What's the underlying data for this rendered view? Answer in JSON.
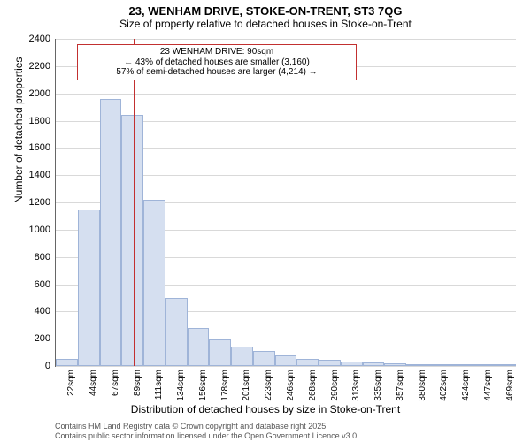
{
  "title": {
    "line1": "23, WENHAM DRIVE, STOKE-ON-TRENT, ST3 7QG",
    "line2": "Size of property relative to detached houses in Stoke-on-Trent",
    "fontsize_main": 13,
    "fontsize_sub": 12,
    "color": "#000000"
  },
  "chart": {
    "type": "histogram",
    "background_color": "#ffffff",
    "grid_color": "#d9d9d9",
    "axis_color": "#666666",
    "ylim": [
      0,
      2400
    ],
    "yticks": [
      0,
      200,
      400,
      600,
      800,
      1000,
      1200,
      1400,
      1600,
      1800,
      2000,
      2200,
      2400
    ],
    "ytick_fontsize": 11,
    "ylabel": "Number of detached properties",
    "xlabel": "Distribution of detached houses by size in Stoke-on-Trent",
    "label_fontsize": 12,
    "xtick_fontsize": 10,
    "bar_fill": "#d5dff0",
    "bar_stroke": "#9fb4d8",
    "bar_width_ratio": 1.0,
    "categories": [
      "22sqm",
      "44sqm",
      "67sqm",
      "89sqm",
      "111sqm",
      "134sqm",
      "156sqm",
      "178sqm",
      "201sqm",
      "223sqm",
      "246sqm",
      "268sqm",
      "290sqm",
      "313sqm",
      "335sqm",
      "357sqm",
      "380sqm",
      "402sqm",
      "424sqm",
      "447sqm",
      "469sqm"
    ],
    "values": [
      50,
      1150,
      1960,
      1840,
      1220,
      500,
      280,
      195,
      145,
      110,
      80,
      55,
      45,
      35,
      25,
      20,
      12,
      8,
      5,
      5,
      3
    ]
  },
  "marker": {
    "position_index": 3.04,
    "color": "#c23030",
    "callout_lines": [
      "23 WENHAM DRIVE: 90sqm",
      "← 43% of detached houses are smaller (3,160)",
      "57% of semi-detached houses are larger (4,214) →"
    ],
    "callout_fontsize": 10,
    "callout_border": "#c23030",
    "callout_bg": "#ffffff"
  },
  "attribution": {
    "line1": "Contains HM Land Registry data © Crown copyright and database right 2025.",
    "line2": "Contains public sector information licensed under the Open Government Licence v3.0.",
    "fontsize": 9,
    "color": "#555555"
  }
}
